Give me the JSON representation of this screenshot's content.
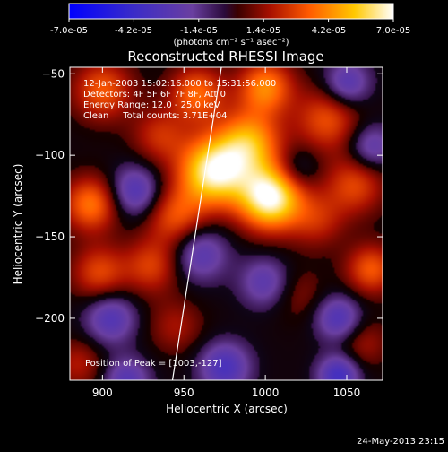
{
  "chart_data": {
    "type": "heatmap",
    "title": "Reconstructed RHESSI Image",
    "xlabel": "Heliocentric X (arcsec)",
    "ylabel": "Heliocentric Y (arcsec)",
    "xlim": [
      880,
      1072
    ],
    "ylim": [
      -238,
      -46
    ],
    "x_ticks": [
      900,
      950,
      1000,
      1050
    ],
    "y_ticks": [
      -50,
      -100,
      -150,
      -200
    ],
    "colorbar": {
      "range": [
        -7e-05,
        7e-05
      ],
      "tick_labels": [
        "-7.0e-05",
        "-4.2e-05",
        "-1.4e-05",
        "1.4e-05",
        "4.2e-05",
        "7.0e-05"
      ],
      "unit_label": "(photons cm⁻² s⁻¹ asec⁻²)"
    },
    "annotations": [
      "12-Jan-2003 15:02:16.000 to 15:31:56.000",
      "Detectors: 4F 5F 6F 7F 8F, Att 0",
      "Energy Range: 12.0 - 25.0 keV",
      "Clean     Total counts: 3.71E+04"
    ],
    "peak_label": "Position of Peak = [1003,-127]",
    "peak": [
      1003,
      -127
    ],
    "limb_line": [
      [
        943,
        -238
      ],
      [
        973,
        -46
      ]
    ],
    "sources": [
      {
        "x": 1003,
        "y": -126,
        "value": 7e-05,
        "sigma": 14
      },
      {
        "x": 968,
        "y": -110,
        "value": 6.5e-05,
        "sigma": 15
      },
      {
        "x": 990,
        "y": -92,
        "value": 4.5e-05,
        "sigma": 14
      },
      {
        "x": 1000,
        "y": -58,
        "value": 4e-05,
        "sigma": 12
      },
      {
        "x": 958,
        "y": -62,
        "value": 3.5e-05,
        "sigma": 12
      },
      {
        "x": 1038,
        "y": -78,
        "value": 3e-05,
        "sigma": 14
      },
      {
        "x": 1055,
        "y": -118,
        "value": 2.8e-05,
        "sigma": 13
      },
      {
        "x": 1032,
        "y": -140,
        "value": 2e-05,
        "sigma": 12
      },
      {
        "x": 945,
        "y": -138,
        "value": 3e-05,
        "sigma": 13
      },
      {
        "x": 935,
        "y": -88,
        "value": 2.2e-05,
        "sigma": 12
      },
      {
        "x": 900,
        "y": -60,
        "value": 3.2e-05,
        "sigma": 13
      },
      {
        "x": 893,
        "y": -130,
        "value": 3.8e-05,
        "sigma": 12
      },
      {
        "x": 898,
        "y": -172,
        "value": 2.8e-05,
        "sigma": 12
      },
      {
        "x": 930,
        "y": -168,
        "value": 2.6e-05,
        "sigma": 12
      },
      {
        "x": 945,
        "y": -205,
        "value": 1.6e-05,
        "sigma": 12
      },
      {
        "x": 1065,
        "y": -170,
        "value": 3.2e-05,
        "sigma": 11
      },
      {
        "x": 1060,
        "y": -215,
        "value": 1.6e-05,
        "sigma": 11
      },
      {
        "x": 1020,
        "y": -185,
        "value": 1.2e-05,
        "sigma": 12
      },
      {
        "x": 885,
        "y": -228,
        "value": 1.8e-05,
        "sigma": 11
      },
      {
        "x": 920,
        "y": -122,
        "value": -3.2e-05,
        "sigma": 11
      },
      {
        "x": 960,
        "y": -160,
        "value": -2.8e-05,
        "sigma": 12
      },
      {
        "x": 1050,
        "y": -56,
        "value": -3e-05,
        "sigma": 10
      },
      {
        "x": 1065,
        "y": -95,
        "value": -2.6e-05,
        "sigma": 10
      },
      {
        "x": 905,
        "y": -200,
        "value": -3e-05,
        "sigma": 11
      },
      {
        "x": 975,
        "y": -230,
        "value": -3.4e-05,
        "sigma": 11
      },
      {
        "x": 1000,
        "y": -178,
        "value": -2.6e-05,
        "sigma": 11
      },
      {
        "x": 1045,
        "y": -200,
        "value": -3.2e-05,
        "sigma": 10
      },
      {
        "x": 1045,
        "y": -235,
        "value": -3.8e-05,
        "sigma": 9
      },
      {
        "x": 915,
        "y": -238,
        "value": -2.8e-05,
        "sigma": 10
      },
      {
        "x": 1020,
        "y": -108,
        "value": -1.6e-05,
        "sigma": 9
      }
    ]
  },
  "footer_date": "24-May-2013 23:15"
}
